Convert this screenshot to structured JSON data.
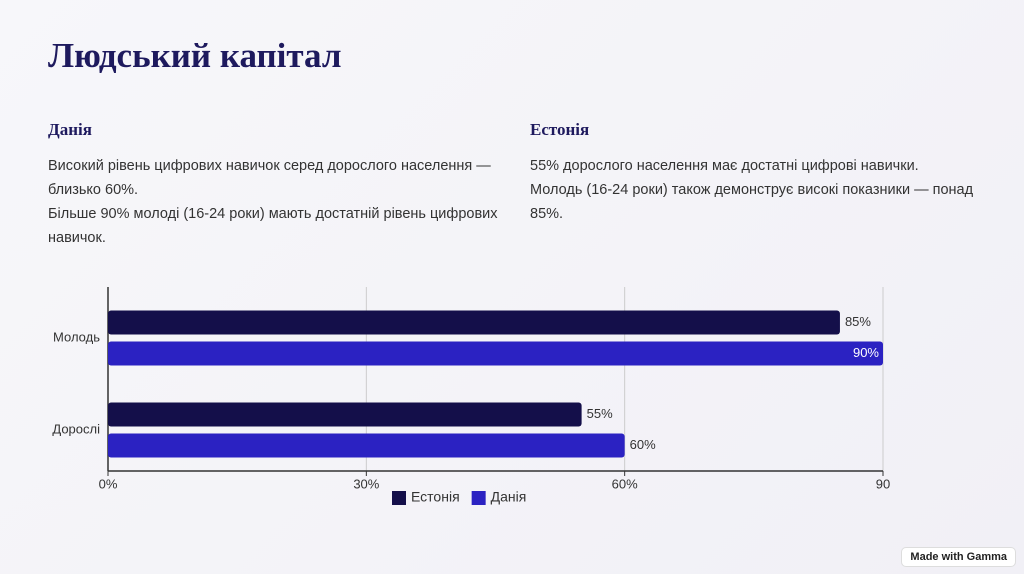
{
  "header": {
    "title": "Людський капітал"
  },
  "sections": [
    {
      "heading": "Данія",
      "paragraphs": [
        "Високий рівень цифрових навичок серед дорослого населення — близько 60%.",
        "Більше 90% молоді (16-24 роки) мають достатній рівень цифрових навичок."
      ]
    },
    {
      "heading": "Естонія",
      "paragraphs": [
        "55% дорослого населення має достатні цифрові навички.",
        "Молодь (16-24 роки) також демонструє високі показники — понад 85%."
      ]
    }
  ],
  "chart_data": {
    "type": "hbar",
    "categories": [
      "Молодь",
      "Дорослі"
    ],
    "series": [
      {
        "name": "Естонія",
        "color": "#140f4a",
        "values": [
          85,
          55
        ],
        "value_labels": [
          "85%",
          "55%"
        ]
      },
      {
        "name": "Данія",
        "color": "#2b22c2",
        "values": [
          90,
          60
        ],
        "value_labels": [
          "90%",
          "60%"
        ]
      }
    ],
    "xlim": [
      0,
      90
    ],
    "xticks": [
      {
        "value": 0,
        "label": "0%"
      },
      {
        "value": 30,
        "label": "30%"
      },
      {
        "value": 60,
        "label": "60%"
      },
      90
    ],
    "grid": true,
    "legend": "bottom"
  },
  "badge": "Made with Gamma"
}
